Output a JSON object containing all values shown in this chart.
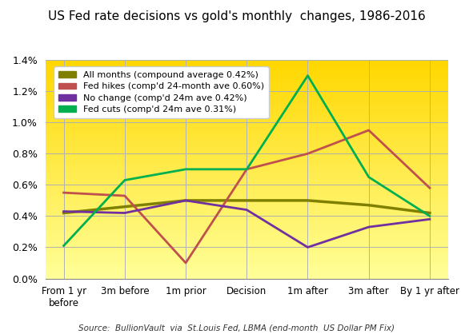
{
  "title": "US Fed rate decisions vs gold's monthly  changes, 1986-2016",
  "x_labels": [
    "From 1 yr\nbefore",
    "3m before",
    "1m prior",
    "Decision",
    "1m after",
    "3m after",
    "By 1 yr after"
  ],
  "x_positions": [
    0,
    1,
    2,
    3,
    4,
    5,
    6
  ],
  "series": [
    {
      "name": "All months (compound average 0.42%)",
      "color": "#808000",
      "linewidth": 2.5,
      "values": [
        0.0042,
        0.0046,
        0.005,
        0.005,
        0.005,
        0.0047,
        0.0042
      ]
    },
    {
      "name": "Fed hikes (comp'd 24-month ave 0.60%)",
      "color": "#c0504d",
      "linewidth": 2.0,
      "values": [
        0.0055,
        0.0053,
        0.001,
        0.007,
        0.008,
        0.0095,
        0.0058
      ]
    },
    {
      "name": "No change (comp'd 24m ave 0.42%)",
      "color": "#7030a0",
      "linewidth": 2.0,
      "values": [
        0.0043,
        0.0042,
        0.005,
        0.0044,
        0.002,
        0.0033,
        0.0038
      ]
    },
    {
      "name": "Fed cuts (comp'd 24m ave 0.31%)",
      "color": "#00b050",
      "linewidth": 2.0,
      "values": [
        0.0021,
        0.0063,
        0.007,
        0.007,
        0.013,
        0.0065,
        0.004
      ]
    }
  ],
  "ylim": [
    0.0,
    0.014
  ],
  "yticks": [
    0.0,
    0.002,
    0.004,
    0.006,
    0.008,
    0.01,
    0.012,
    0.014
  ],
  "ytick_labels": [
    "0.0%",
    "0.2%",
    "0.4%",
    "0.6%",
    "0.8%",
    "1.0%",
    "1.2%",
    "1.4%"
  ],
  "source_text": "Source:  BullionVault  via  St.Louis Fed, LBMA (end-month  US Dollar PM Fix)",
  "grid_color": "#b0b0b0"
}
